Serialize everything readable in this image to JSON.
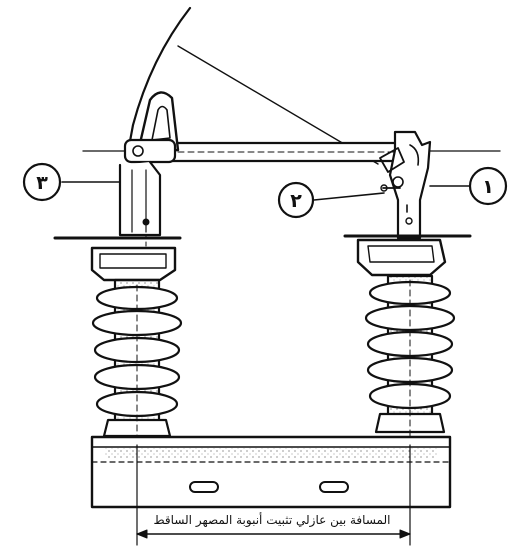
{
  "diagram": {
    "callouts": [
      {
        "id": "one",
        "label": "١"
      },
      {
        "id": "two",
        "label": "٢"
      },
      {
        "id": "three",
        "label": "٣"
      }
    ],
    "dimension_caption": "المسافة بين عازلي تثبيت أنبوبة المصهر الساقط",
    "stroke_color": "#111111",
    "background_color": "#ffffff"
  }
}
